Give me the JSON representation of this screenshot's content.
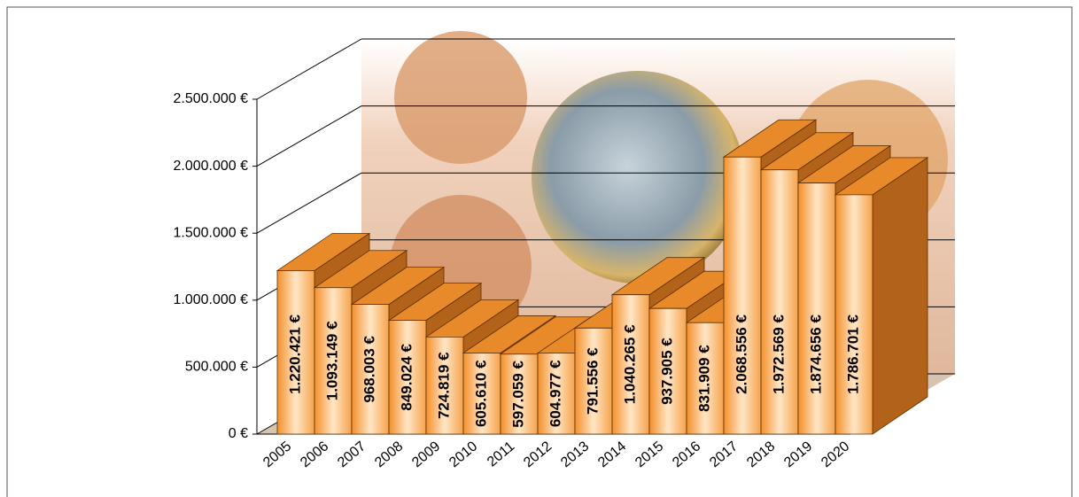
{
  "chart_data": {
    "type": "bar3d",
    "categories": [
      "2005",
      "2006",
      "2007",
      "2008",
      "2009",
      "2010",
      "2011",
      "2012",
      "2013",
      "2014",
      "2015",
      "2016",
      "2017",
      "2018",
      "2019",
      "2020"
    ],
    "values": [
      1220421,
      1093149,
      968003,
      849024,
      724819,
      605610,
      597059,
      604977,
      791556,
      1040265,
      937905,
      831909,
      2068556,
      1972569,
      1874656,
      1786701
    ],
    "value_labels": [
      "1.220.421 €",
      "1.093.149 €",
      "968.003 €",
      "849.024 €",
      "724.819 €",
      "605.610 €",
      "597.059 €",
      "604.977 €",
      "791.556 €",
      "1.040.265 €",
      "937.905 €",
      "831.909 €",
      "2.068.556 €",
      "1.972.569 €",
      "1.874.656 €",
      "1.786.701 €"
    ],
    "color": "#f59a3c",
    "ylim": [
      0,
      2500000
    ],
    "yticks": [
      {
        "value": 0,
        "label": "0 €"
      },
      {
        "value": 500000,
        "label": "500.000 €"
      },
      {
        "value": 1000000,
        "label": "1.000.000 €"
      },
      {
        "value": 1500000,
        "label": "1.500.000 €"
      },
      {
        "value": 2000000,
        "label": "2.000.000 €"
      },
      {
        "value": 2500000,
        "label": "2.500.000 €"
      }
    ],
    "grid": true
  }
}
